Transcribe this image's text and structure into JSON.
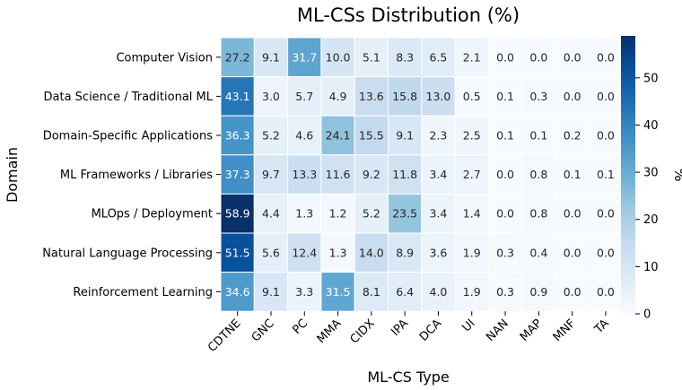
{
  "chart_data": {
    "type": "heatmap",
    "title": "ML-CSs Distribution (%)",
    "xlabel": "ML-CS Type",
    "ylabel": "Domain",
    "colorbar_label": "%",
    "colorbar_ticks": [
      0,
      10,
      20,
      30,
      40,
      50
    ],
    "colorbar_range": [
      0,
      58.9
    ],
    "colormap": "Blues",
    "x": [
      "CDTNE",
      "GNC",
      "PC",
      "MMA",
      "CIDX",
      "IPA",
      "DCA",
      "UI",
      "NAN",
      "MAP",
      "MNF",
      "TA"
    ],
    "y": [
      "Computer Vision",
      "Data Science / Traditional ML",
      "Domain-Specific Applications",
      "ML Frameworks / Libraries",
      "MLOps / Deployment",
      "Natural Language Processing",
      "Reinforcement Learning"
    ],
    "values": [
      [
        27.2,
        9.1,
        31.7,
        10.0,
        5.1,
        8.3,
        6.5,
        2.1,
        0.0,
        0.0,
        0.0,
        0.0
      ],
      [
        43.1,
        3.0,
        5.7,
        4.9,
        13.6,
        15.8,
        13.0,
        0.5,
        0.1,
        0.3,
        0.0,
        0.0
      ],
      [
        36.3,
        5.2,
        4.6,
        24.1,
        15.5,
        9.1,
        2.3,
        2.5,
        0.1,
        0.1,
        0.2,
        0.0
      ],
      [
        37.3,
        9.7,
        13.3,
        11.6,
        9.2,
        11.8,
        3.4,
        2.7,
        0.0,
        0.8,
        0.1,
        0.1
      ],
      [
        58.9,
        4.4,
        1.3,
        1.2,
        5.2,
        23.5,
        3.4,
        1.4,
        0.0,
        0.8,
        0.0,
        0.0
      ],
      [
        51.5,
        5.6,
        12.4,
        1.3,
        14.0,
        8.9,
        3.6,
        1.9,
        0.3,
        0.4,
        0.0,
        0.0
      ],
      [
        34.6,
        9.1,
        3.3,
        31.5,
        8.1,
        6.4,
        4.0,
        1.9,
        0.3,
        0.9,
        0.0,
        0.0
      ]
    ],
    "grid": false,
    "legend": "colorbar-right"
  }
}
